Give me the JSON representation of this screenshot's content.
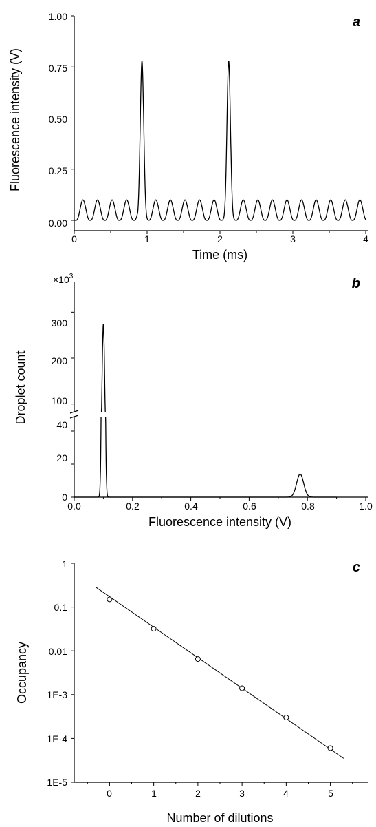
{
  "chart_data": [
    {
      "panel": "a",
      "type": "line",
      "xlabel": "Time (ms)",
      "ylabel": "Fluorescence intensity (V)",
      "xlim": [
        0,
        4
      ],
      "ylim": [
        0,
        1.0
      ],
      "x_ticks": [
        "0",
        "1",
        "2",
        "3",
        "4"
      ],
      "y_ticks": [
        "0.00",
        "0.25",
        "0.50",
        "0.75",
        "1.00"
      ],
      "baseline": 0.0,
      "background_period": 0.2,
      "background_amplitude": 0.1,
      "peaks": [
        {
          "x": 0.93,
          "y": 0.78
        },
        {
          "x": 2.12,
          "y": 0.78
        }
      ]
    },
    {
      "panel": "b",
      "type": "line",
      "xlabel": "Fluorescence intensity (V)",
      "ylabel": "Droplet count",
      "y_multiplier_label": "×10",
      "y_multiplier_exp": "3",
      "xlim": [
        0,
        1.0
      ],
      "x_ticks": [
        "0.0",
        "0.2",
        "0.4",
        "0.6",
        "0.8",
        "1.0"
      ],
      "y_ticks_lower": [
        "0",
        "20",
        "40"
      ],
      "y_ticks_upper": [
        "100",
        "200",
        "300"
      ],
      "y_axis_break": true,
      "peaks": [
        {
          "x": 0.1,
          "y": 275
        },
        {
          "x": 0.775,
          "y": 14
        }
      ],
      "data_xrange": [
        0,
        0.9
      ]
    },
    {
      "panel": "c",
      "type": "scatter",
      "xlabel": "Number of dilutions",
      "ylabel": "Occupancy",
      "yscale": "log",
      "xlim": [
        -0.8,
        5.8
      ],
      "ylim": [
        1e-05,
        1
      ],
      "x_ticks": [
        "0",
        "1",
        "2",
        "3",
        "4",
        "5"
      ],
      "y_ticks": [
        "1E-5",
        "1E-4",
        "1E-3",
        "0.01",
        "0.1",
        "1"
      ],
      "x": [
        0,
        1,
        2,
        3,
        4,
        5
      ],
      "y": [
        0.15,
        0.032,
        0.0065,
        0.0014,
        0.0003,
        6e-05
      ],
      "fit_line": {
        "x": [
          -0.3,
          5.3
        ],
        "y": [
          0.28,
          3.5e-05
        ]
      }
    }
  ]
}
